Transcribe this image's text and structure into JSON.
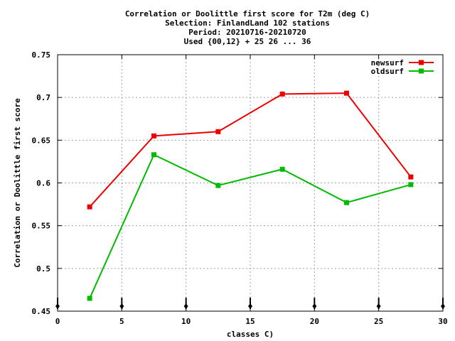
{
  "chart_data": {
    "type": "line",
    "title_lines": [
      "Correlation or Doolittle first score  for T2m (deg C)",
      "Selection: FinlandLand    102 stations",
      "Period: 20210716-20210720",
      "Used {00,12} + 25 26 ... 36"
    ],
    "xlabel": "classes C)",
    "ylabel": "Correlation or Doolittle first score",
    "xlim": [
      0,
      30
    ],
    "ylim": [
      0.45,
      0.75
    ],
    "xticks": [
      0,
      5,
      10,
      15,
      20,
      25,
      30
    ],
    "yticks": [
      "0.45",
      "0.5",
      "0.55",
      "0.6",
      "0.65",
      "0.7",
      "0.75"
    ],
    "grid": true,
    "legend_position": "top-right",
    "series": [
      {
        "name": "newsurf",
        "color": "#ee0000",
        "x": [
          2.5,
          7.5,
          12.5,
          17.5,
          22.5,
          27.5
        ],
        "y": [
          0.572,
          0.655,
          0.66,
          0.704,
          0.705,
          0.607
        ]
      },
      {
        "name": "oldsurf",
        "color": "#00bb00",
        "x": [
          2.5,
          7.5,
          12.5,
          17.5,
          22.5,
          27.5
        ],
        "y": [
          0.465,
          0.633,
          0.597,
          0.616,
          0.577,
          0.598
        ]
      }
    ],
    "bottom_markers_x": [
      0,
      5,
      10,
      15,
      20,
      25,
      30
    ]
  }
}
